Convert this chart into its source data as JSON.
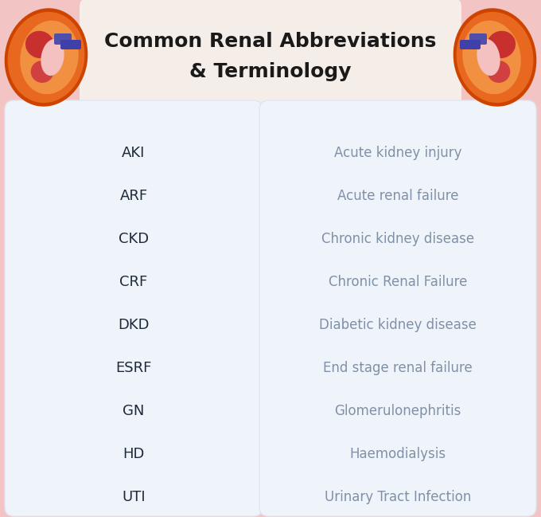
{
  "title_line1": "Common Renal Abbreviations",
  "title_line2": "& Terminology",
  "background_color": "#f2c4c4",
  "card_color": "#eef4fa",
  "title_color": "#1a1a1a",
  "abbrev_color": "#1e2a3a",
  "definition_color": "#8090a8",
  "abbreviations": [
    "AKI",
    "ARF",
    "CKD",
    "CRF",
    "DKD",
    "ESRF",
    "GN",
    "HD",
    "UTI"
  ],
  "definitions": [
    "Acute kidney injury",
    "Acute renal failure",
    "Chronic kidney disease",
    "Chronic Renal Failure",
    "Diabetic kidney disease",
    "End stage renal failure",
    "Glomerulonephritis",
    "Haemodialysis",
    "Urinary Tract Infection"
  ],
  "title_fontsize": 18,
  "abbrev_fontsize": 13,
  "def_fontsize": 12,
  "figwidth": 6.8,
  "figheight": 6.49,
  "dpi": 100
}
